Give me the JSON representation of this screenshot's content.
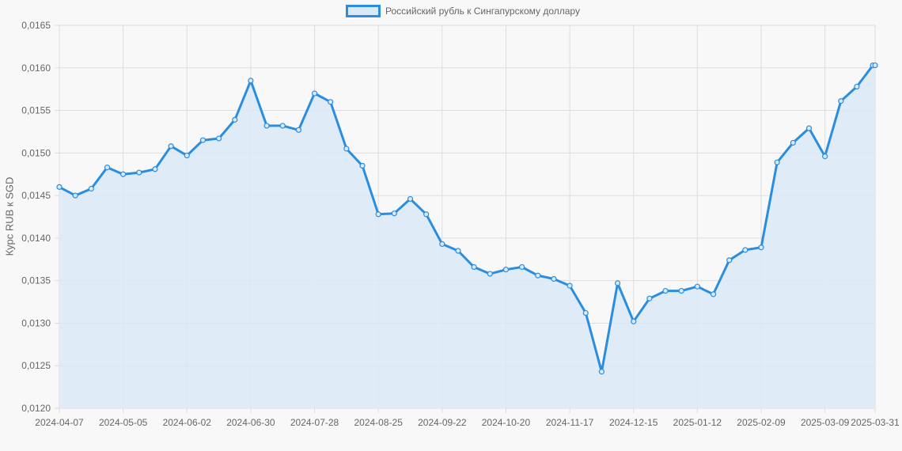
{
  "chart_data": {
    "type": "line",
    "title": "",
    "legend": [
      "Российский рубль к Сингапурскому доллару"
    ],
    "legend_position": "top",
    "xlabel": "",
    "ylabel": "Курс RUB к SGD",
    "ylim": [
      0.012,
      0.0165
    ],
    "y_ticks": [
      "0,0120",
      "0,0125",
      "0,0130",
      "0,0135",
      "0,0140",
      "0,0145",
      "0,0150",
      "0,0155",
      "0,0160",
      "0,0165"
    ],
    "x_ticks": [
      "2024-04-07",
      "2024-05-05",
      "2024-06-02",
      "2024-06-30",
      "2024-07-28",
      "2024-08-25",
      "2024-09-22",
      "2024-10-20",
      "2024-11-17",
      "2024-12-15",
      "2025-01-12",
      "2025-02-09",
      "2025-03-09",
      "2025-03-31"
    ],
    "grid": true,
    "fill": true,
    "colors": {
      "line": "#2b8de0",
      "fill": "#dbeaf8",
      "grid": "#dddddd",
      "background": "#f8f8f8"
    },
    "series": [
      {
        "name": "Российский рубль к Сингапурскому доллару",
        "x": [
          "2024-04-07",
          "2024-04-14",
          "2024-04-21",
          "2024-04-28",
          "2024-05-05",
          "2024-05-12",
          "2024-05-19",
          "2024-05-26",
          "2024-06-02",
          "2024-06-09",
          "2024-06-16",
          "2024-06-23",
          "2024-06-30",
          "2024-07-07",
          "2024-07-14",
          "2024-07-21",
          "2024-07-28",
          "2024-08-04",
          "2024-08-11",
          "2024-08-18",
          "2024-08-25",
          "2024-09-01",
          "2024-09-08",
          "2024-09-15",
          "2024-09-22",
          "2024-09-29",
          "2024-10-06",
          "2024-10-13",
          "2024-10-20",
          "2024-10-27",
          "2024-11-03",
          "2024-11-10",
          "2024-11-17",
          "2024-11-24",
          "2024-12-01",
          "2024-12-08",
          "2024-12-15",
          "2024-12-22",
          "2024-12-29",
          "2025-01-05",
          "2025-01-12",
          "2025-01-19",
          "2025-01-26",
          "2025-02-02",
          "2025-02-09",
          "2025-02-16",
          "2025-02-23",
          "2025-03-02",
          "2025-03-09",
          "2025-03-16",
          "2025-03-23",
          "2025-03-30",
          "2025-03-31"
        ],
        "values": [
          0.0146,
          0.0145,
          0.01458,
          0.01483,
          0.01475,
          0.01477,
          0.01481,
          0.01508,
          0.01497,
          0.01515,
          0.01517,
          0.01539,
          0.01585,
          0.01532,
          0.01532,
          0.01527,
          0.0157,
          0.0156,
          0.01505,
          0.01485,
          0.01428,
          0.01429,
          0.01446,
          0.01428,
          0.01393,
          0.01385,
          0.01366,
          0.01358,
          0.01363,
          0.01366,
          0.01356,
          0.01352,
          0.01344,
          0.01312,
          0.01243,
          0.01347,
          0.01302,
          0.01329,
          0.01338,
          0.01338,
          0.01343,
          0.01334,
          0.01374,
          0.01386,
          0.01389,
          0.01489,
          0.01512,
          0.01529,
          0.01496,
          0.01561,
          0.01578,
          0.01603,
          0.01603
        ]
      }
    ]
  }
}
